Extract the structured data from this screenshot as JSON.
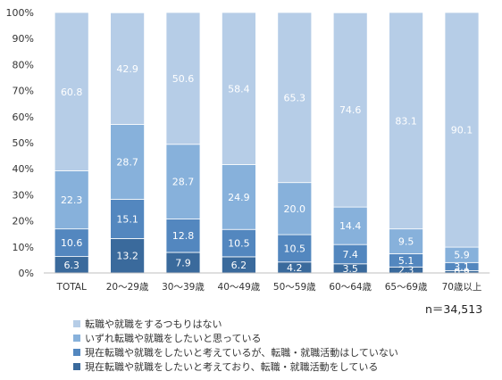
{
  "chart_data": {
    "type": "bar",
    "stacked": true,
    "categories": [
      "TOTAL",
      "20～29歳",
      "30～39歳",
      "40～49歳",
      "50～59歳",
      "60～64歳",
      "65～69歳",
      "70歳以上"
    ],
    "series": [
      {
        "name": "現在転職や就職をしたいと考えており、転職・就職活動をしている",
        "color": "#3a6a9c",
        "values": [
          6.3,
          13.2,
          7.9,
          6.2,
          4.2,
          3.5,
          2.3,
          0.9
        ]
      },
      {
        "name": "現在転職や就職をしたいと考えているが、転職・就職活動はしていない",
        "color": "#5387bf",
        "values": [
          10.6,
          15.1,
          12.8,
          10.5,
          10.5,
          7.4,
          5.1,
          3.1
        ]
      },
      {
        "name": "いずれ転職や就職をしたいと思っている",
        "color": "#87b1db",
        "values": [
          22.3,
          28.7,
          28.7,
          24.9,
          20.0,
          14.4,
          9.5,
          5.9
        ]
      },
      {
        "name": "転職や就職をするつもりはない",
        "color": "#b6cde7",
        "values": [
          60.8,
          42.9,
          50.6,
          58.4,
          65.3,
          74.6,
          83.1,
          90.1
        ]
      }
    ],
    "ylim": [
      0,
      100
    ],
    "yticks": [
      "0%",
      "10%",
      "20%",
      "30%",
      "40%",
      "50%",
      "60%",
      "70%",
      "80%",
      "90%",
      "100%"
    ],
    "legend_position": "bottom",
    "legend_order": [
      3,
      2,
      1,
      0
    ]
  },
  "note": "n＝34,513"
}
